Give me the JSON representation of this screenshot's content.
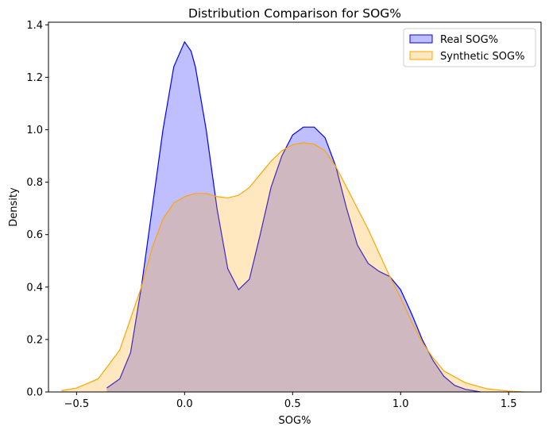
{
  "chart_data": {
    "type": "area",
    "title": "Distribution Comparison for SOG%",
    "xlabel": "SOG%",
    "ylabel": "Density",
    "xlim": [
      -0.63,
      1.65
    ],
    "ylim": [
      0,
      1.41
    ],
    "xticks": [
      -0.5,
      0.0,
      0.5,
      1.0,
      1.5
    ],
    "xtick_labels": [
      "−0.5",
      "0.0",
      "0.5",
      "1.0",
      "1.5"
    ],
    "yticks": [
      0.0,
      0.2,
      0.4,
      0.6,
      0.8,
      1.0,
      1.2,
      1.4
    ],
    "ytick_labels": [
      "0.0",
      "0.2",
      "0.4",
      "0.6",
      "0.8",
      "1.0",
      "1.2",
      "1.4"
    ],
    "grid": false,
    "legend_position": "top-right",
    "series": [
      {
        "name": "Real SOG%",
        "line_color": "#0000ff",
        "fill_color": "rgba(0,0,255,0.25)",
        "points": [
          [
            -0.36,
            0.015
          ],
          [
            -0.3,
            0.05
          ],
          [
            -0.25,
            0.15
          ],
          [
            -0.2,
            0.4
          ],
          [
            -0.15,
            0.7
          ],
          [
            -0.1,
            1.0
          ],
          [
            -0.05,
            1.24
          ],
          [
            0.0,
            1.335
          ],
          [
            0.03,
            1.3
          ],
          [
            0.05,
            1.24
          ],
          [
            0.1,
            1.0
          ],
          [
            0.15,
            0.7
          ],
          [
            0.2,
            0.47
          ],
          [
            0.25,
            0.39
          ],
          [
            0.3,
            0.43
          ],
          [
            0.35,
            0.6
          ],
          [
            0.4,
            0.78
          ],
          [
            0.45,
            0.9
          ],
          [
            0.5,
            0.98
          ],
          [
            0.55,
            1.01
          ],
          [
            0.6,
            1.01
          ],
          [
            0.65,
            0.97
          ],
          [
            0.7,
            0.86
          ],
          [
            0.75,
            0.7
          ],
          [
            0.8,
            0.56
          ],
          [
            0.85,
            0.49
          ],
          [
            0.9,
            0.46
          ],
          [
            0.95,
            0.44
          ],
          [
            1.0,
            0.39
          ],
          [
            1.05,
            0.3
          ],
          [
            1.1,
            0.2
          ],
          [
            1.15,
            0.12
          ],
          [
            1.2,
            0.06
          ],
          [
            1.25,
            0.025
          ],
          [
            1.3,
            0.01
          ],
          [
            1.37,
            0.0
          ]
        ]
      },
      {
        "name": "Synthetic SOG%",
        "line_color": "#ffa500",
        "fill_color": "rgba(255,165,0,0.25)",
        "points": [
          [
            -0.57,
            0.005
          ],
          [
            -0.5,
            0.015
          ],
          [
            -0.4,
            0.05
          ],
          [
            -0.3,
            0.16
          ],
          [
            -0.2,
            0.4
          ],
          [
            -0.15,
            0.55
          ],
          [
            -0.1,
            0.66
          ],
          [
            -0.05,
            0.72
          ],
          [
            0.0,
            0.745
          ],
          [
            0.05,
            0.757
          ],
          [
            0.1,
            0.757
          ],
          [
            0.15,
            0.745
          ],
          [
            0.2,
            0.74
          ],
          [
            0.25,
            0.75
          ],
          [
            0.3,
            0.78
          ],
          [
            0.35,
            0.83
          ],
          [
            0.4,
            0.88
          ],
          [
            0.45,
            0.92
          ],
          [
            0.5,
            0.943
          ],
          [
            0.55,
            0.95
          ],
          [
            0.6,
            0.945
          ],
          [
            0.65,
            0.92
          ],
          [
            0.7,
            0.86
          ],
          [
            0.75,
            0.78
          ],
          [
            0.8,
            0.7
          ],
          [
            0.85,
            0.62
          ],
          [
            0.9,
            0.53
          ],
          [
            0.95,
            0.44
          ],
          [
            1.0,
            0.36
          ],
          [
            1.05,
            0.27
          ],
          [
            1.1,
            0.19
          ],
          [
            1.15,
            0.13
          ],
          [
            1.2,
            0.08
          ],
          [
            1.3,
            0.035
          ],
          [
            1.4,
            0.012
          ],
          [
            1.5,
            0.003
          ],
          [
            1.57,
            0.0
          ]
        ]
      }
    ]
  }
}
